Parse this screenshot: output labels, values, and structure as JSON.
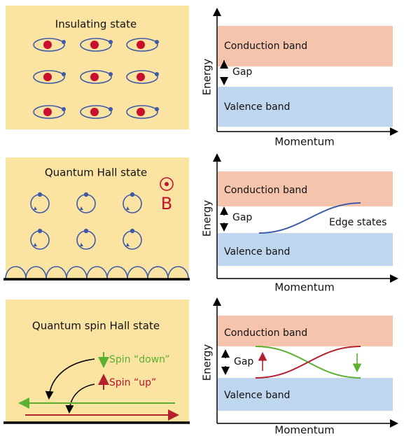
{
  "panels": [
    {
      "title": "Insulating state",
      "conduction_label": "Conduction band",
      "gap_label": "Gap",
      "valence_label": "Valence band",
      "y_axis": "Energy",
      "x_axis": "Momentum"
    },
    {
      "title": "Quantum Hall state",
      "field_label": "B",
      "conduction_label": "Conduction band",
      "gap_label": "Gap",
      "edge_label": "Edge states",
      "valence_label": "Valence band",
      "y_axis": "Energy",
      "x_axis": "Momentum"
    },
    {
      "title": "Quantum spin Hall state",
      "spin_down": "Spin “down”",
      "spin_up": "Spin “up”",
      "conduction_label": "Conduction band",
      "gap_label": "Gap",
      "valence_label": "Valence band",
      "y_axis": "Energy",
      "x_axis": "Momentum"
    }
  ]
}
